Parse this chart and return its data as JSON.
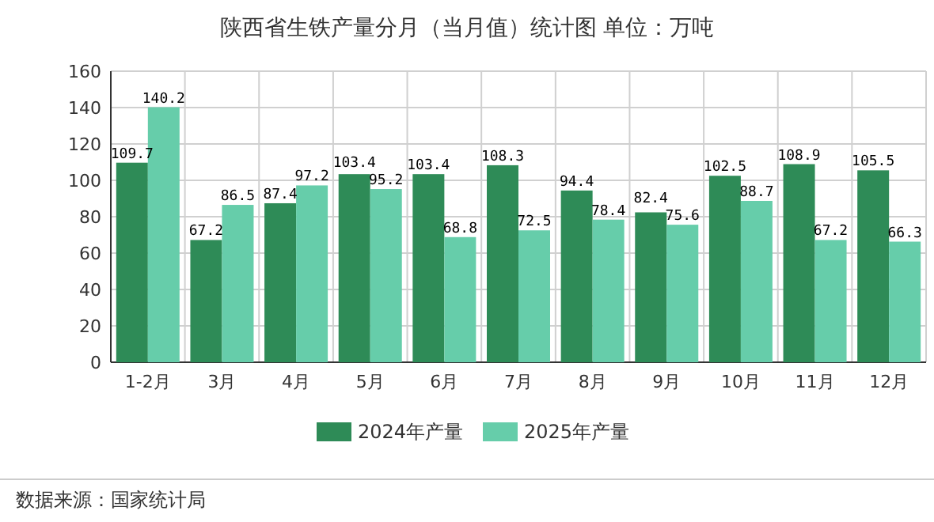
{
  "chart_data": {
    "type": "bar",
    "title": "陕西省生铁产量分月（当月值）统计图 单位：万吨",
    "categories": [
      "1-2月",
      "3月",
      "4月",
      "5月",
      "6月",
      "7月",
      "8月",
      "9月",
      "10月",
      "11月",
      "12月"
    ],
    "series": [
      {
        "name": "2024年产量",
        "color": "#2e8b57",
        "values": [
          109.7,
          67.2,
          87.4,
          103.4,
          103.4,
          108.3,
          94.4,
          82.4,
          102.5,
          108.9,
          105.5
        ]
      },
      {
        "name": "2025年产量",
        "color": "#66cdaa",
        "values": [
          140.2,
          86.5,
          97.2,
          95.2,
          68.8,
          72.5,
          78.4,
          75.6,
          88.7,
          67.2,
          66.3
        ]
      }
    ],
    "ylim": [
      0,
      160
    ],
    "yticks": [
      0,
      20,
      40,
      60,
      80,
      100,
      120,
      140,
      160
    ],
    "grid": true,
    "legend": "bottom",
    "data_labels": true,
    "annotations": [
      "数据来源：国家统计局"
    ]
  }
}
